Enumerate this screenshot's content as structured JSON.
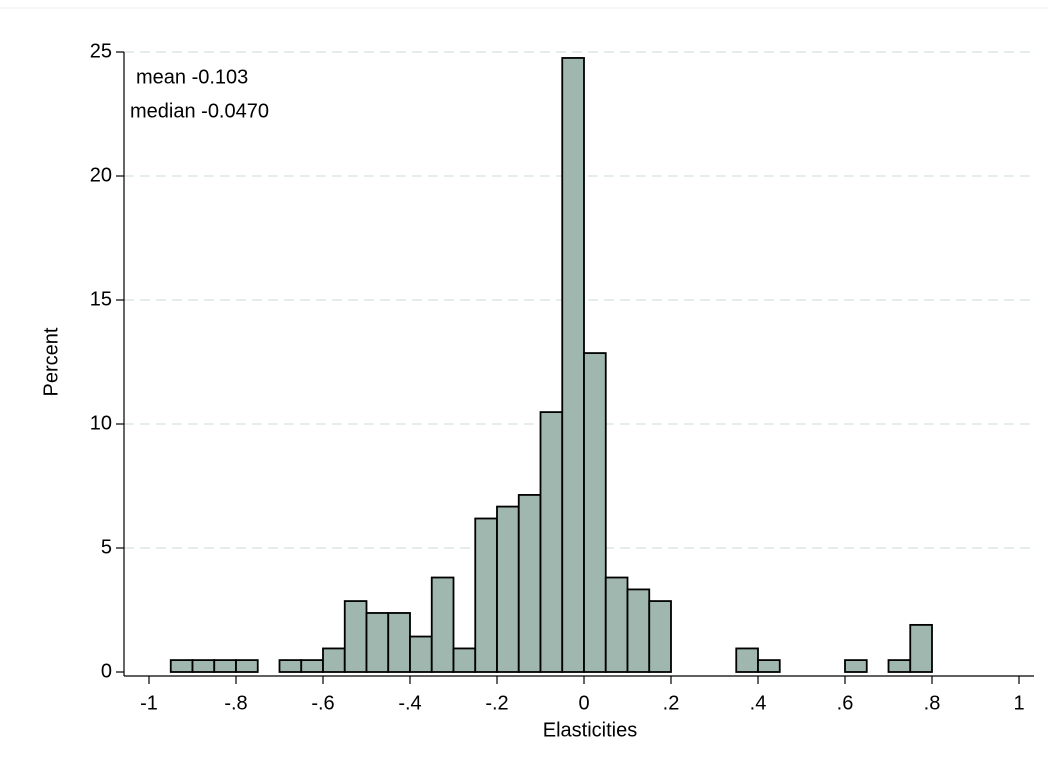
{
  "chart_data": {
    "type": "histogram",
    "x_label": "Elasticities",
    "y_label": "Percent",
    "annotations": [
      "mean -0.103",
      "median -0.0470"
    ],
    "bins": [
      -0.95,
      -0.9,
      -0.85,
      -0.8,
      -0.75,
      -0.7,
      -0.65,
      -0.6,
      -0.55,
      -0.5,
      -0.45,
      -0.4,
      -0.35,
      -0.3,
      -0.25,
      -0.2,
      -0.15,
      -0.1,
      -0.05,
      0,
      0.05,
      0.1,
      0.15,
      0.2,
      0.25,
      0.3,
      0.35,
      0.4,
      0.45,
      0.5,
      0.55,
      0.6,
      0.65,
      0.7,
      0.75,
      0.8
    ],
    "values": [
      0.48,
      0.48,
      0.48,
      0.48,
      0,
      0.48,
      0.48,
      0.95,
      2.86,
      2.38,
      2.38,
      1.43,
      3.81,
      0.95,
      6.19,
      6.67,
      7.14,
      10.48,
      24.76,
      12.86,
      3.81,
      3.33,
      2.86,
      0,
      0,
      0,
      0.95,
      0.48,
      0,
      0,
      0,
      0.48,
      0,
      0.48,
      1.9
    ],
    "color": "#9fb7af",
    "xlim": [
      -1,
      1
    ],
    "xticks": [
      {
        "value": -1,
        "label": "-1"
      },
      {
        "value": -0.8,
        "label": "-.8"
      },
      {
        "value": -0.6,
        "label": "-.6"
      },
      {
        "value": -0.4,
        "label": "-.4"
      },
      {
        "value": -0.2,
        "label": "-.2"
      },
      0,
      {
        "value": 0.2,
        "label": ".2"
      },
      {
        "value": 0.4,
        "label": ".4"
      },
      {
        "value": 0.6,
        "label": ".6"
      },
      {
        "value": 0.8,
        "label": ".8"
      },
      1
    ],
    "ylim": [
      0,
      25
    ],
    "yticks": [
      0,
      5,
      10,
      15,
      20,
      25
    ],
    "grid": true
  }
}
